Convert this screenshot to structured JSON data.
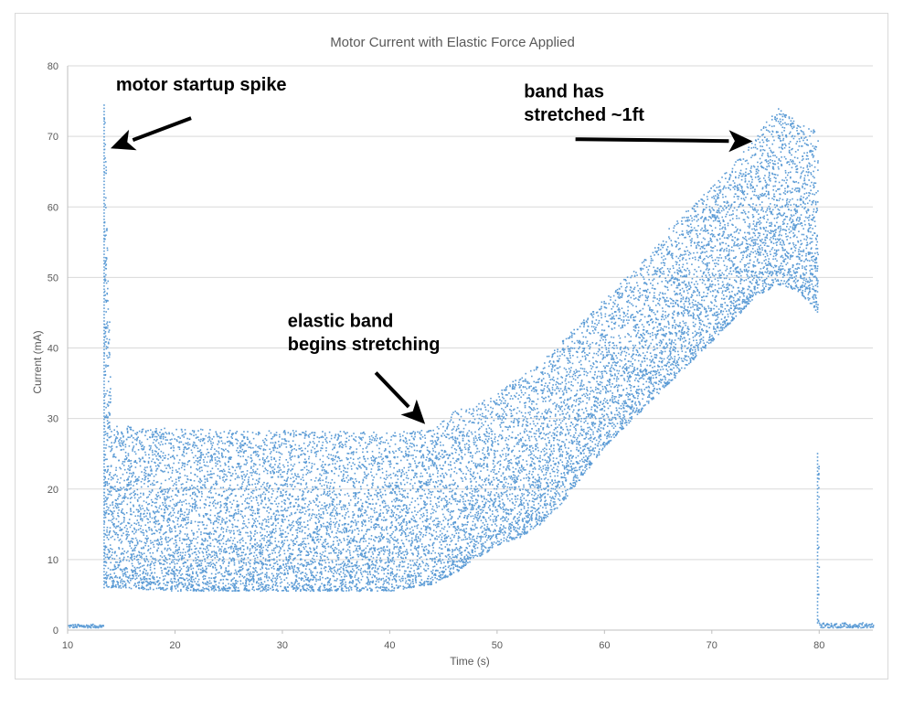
{
  "chart_data": {
    "type": "scatter",
    "title": "Motor Current with Elastic Force Applied",
    "xlabel": "Time (s)",
    "ylabel": "Current (mA)",
    "xlim": [
      10,
      85
    ],
    "ylim": [
      0,
      80
    ],
    "xticks": [
      10,
      20,
      30,
      40,
      50,
      60,
      70,
      80
    ],
    "yticks": [
      0,
      10,
      20,
      30,
      40,
      50,
      60,
      70,
      80
    ],
    "grid": true,
    "marker_color": "#5b9bd5",
    "series": [
      {
        "envelope": [
          {
            "x": 10.0,
            "min": 0.3,
            "max": 0.8
          },
          {
            "x": 13.3,
            "min": 0.3,
            "max": 0.8
          },
          {
            "x": 13.4,
            "min": 6.0,
            "max": 74.5
          },
          {
            "x": 14.0,
            "min": 6.0,
            "max": 29.0
          },
          {
            "x": 20.0,
            "min": 5.5,
            "max": 28.5
          },
          {
            "x": 30.0,
            "min": 5.5,
            "max": 28.3
          },
          {
            "x": 40.0,
            "min": 5.5,
            "max": 28.0
          },
          {
            "x": 44.0,
            "min": 6.5,
            "max": 28.5
          },
          {
            "x": 46.0,
            "min": 8.0,
            "max": 31.0
          },
          {
            "x": 48.0,
            "min": 10.0,
            "max": 32.0
          },
          {
            "x": 50.0,
            "min": 12.0,
            "max": 33.5
          },
          {
            "x": 52.0,
            "min": 13.0,
            "max": 36.0
          },
          {
            "x": 54.0,
            "min": 15.0,
            "max": 38.0
          },
          {
            "x": 56.0,
            "min": 18.0,
            "max": 41.0
          },
          {
            "x": 58.0,
            "min": 22.0,
            "max": 44.0
          },
          {
            "x": 60.0,
            "min": 26.0,
            "max": 47.0
          },
          {
            "x": 62.0,
            "min": 29.0,
            "max": 50.0
          },
          {
            "x": 64.0,
            "min": 32.0,
            "max": 53.0
          },
          {
            "x": 66.0,
            "min": 35.0,
            "max": 57.0
          },
          {
            "x": 68.0,
            "min": 38.0,
            "max": 60.0
          },
          {
            "x": 70.0,
            "min": 41.0,
            "max": 63.0
          },
          {
            "x": 72.0,
            "min": 44.0,
            "max": 66.0
          },
          {
            "x": 74.0,
            "min": 47.0,
            "max": 70.0
          },
          {
            "x": 76.0,
            "min": 49.0,
            "max": 74.0
          },
          {
            "x": 78.0,
            "min": 48.0,
            "max": 72.0
          },
          {
            "x": 79.8,
            "min": 45.0,
            "max": 71.0
          },
          {
            "x": 79.9,
            "min": 1.0,
            "max": 25.0
          },
          {
            "x": 80.0,
            "min": 0.3,
            "max": 1.0
          },
          {
            "x": 85.0,
            "min": 0.3,
            "max": 1.0
          }
        ]
      }
    ],
    "annotations": [
      {
        "text": "motor startup spike",
        "x": 14.5,
        "y": 76.5
      },
      {
        "text": "band has",
        "x": 52.5,
        "y": 75.5
      },
      {
        "text": "stretched ~1ft",
        "x": 52.5,
        "y": 72.2
      },
      {
        "text": "elastic band",
        "x": 30.5,
        "y": 43.0
      },
      {
        "text": "begins stretching",
        "x": 30.5,
        "y": 39.7
      }
    ],
    "arrows": [
      {
        "from": [
          21.5,
          72.6
        ],
        "to": [
          14.0,
          68.3
        ]
      },
      {
        "from": [
          57.3,
          69.6
        ],
        "to": [
          73.8,
          69.3
        ]
      },
      {
        "from": [
          38.7,
          36.5
        ],
        "to": [
          43.3,
          29.2
        ]
      }
    ]
  }
}
